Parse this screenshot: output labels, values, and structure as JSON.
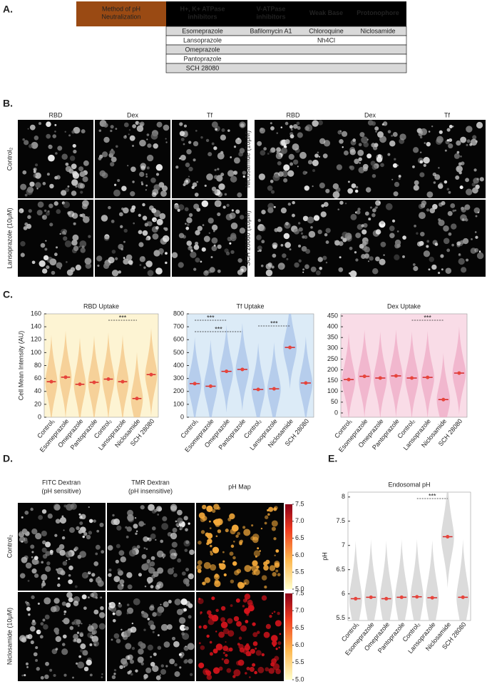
{
  "panel_labels": [
    "A.",
    "B.",
    "C.",
    "D.",
    "E."
  ],
  "table": {
    "method": "Method of pH Neutralization",
    "columns": [
      {
        "name": "H+, K+ ATPase inhibitors",
        "items": [
          "Esomeprazole",
          "Lansoprazole",
          "Omeprazole",
          "Pantoprazole",
          "SCH 28080"
        ]
      },
      {
        "name": "V-ATPase inhibitors",
        "items": [
          "Bafilomycin A1"
        ]
      },
      {
        "name": "Weak Base",
        "items": [
          "Chloroquine",
          "Nh4Cl"
        ]
      },
      {
        "name": "Protonophore",
        "items": [
          "Niclosamide"
        ]
      }
    ]
  },
  "panel_b": {
    "columns": [
      "RBD",
      "Dex",
      "Tf"
    ],
    "left_rows": [
      "Control₂",
      "Lansoprazole (10μM)"
    ],
    "right_rows": [
      "Niclosamide (10μM)",
      "SCH 28080 (10μM)"
    ]
  },
  "panel_d": {
    "columns": [
      [
        "FITC Dextran",
        "(pH sensitive)"
      ],
      [
        "TMR Dextran",
        "(pH insensitive)"
      ],
      [
        "pH Map"
      ]
    ],
    "rows": [
      "Control₂",
      "Niclosamide (10μM)"
    ],
    "colorbar_ticks": [
      {
        "value": 5,
        "label": "5.0"
      },
      5.5,
      {
        "value": 6,
        "label": "6.0"
      },
      6.5,
      {
        "value": 7,
        "label": "7.0"
      },
      7.5
    ]
  },
  "chart_data": [
    {
      "type": "violin",
      "title": "RBD Uptake",
      "ylabel": "Cell Mean Intensity (AU)",
      "color": "#f3c585",
      "background": "#fdf4d3",
      "categories": [
        "Control₁",
        "Esomeprazole",
        "Omeprazole",
        "Pantoprazole",
        "Control₂",
        "Lansoprazole",
        "Niclosamide",
        "SCH 28080"
      ],
      "values": [
        55,
        62,
        51,
        54,
        59,
        55,
        29,
        66
      ],
      "ylim": [
        0,
        160
      ],
      "yticks": [
        0,
        20,
        40,
        60,
        80,
        100,
        120,
        140,
        160
      ],
      "annotations": [
        {
          "text": "***",
          "from": 4,
          "to": 6
        }
      ]
    },
    {
      "type": "violin",
      "title": "Tf Uptake",
      "color": "#a9c3e8",
      "background": "#dcebf7",
      "categories": [
        "Control₁",
        "Esomeprazole",
        "Omeprazole",
        "Pantoprazole",
        "Control₂",
        "Lansoprazole",
        "Niclosamide",
        "SCH 28080"
      ],
      "values": [
        260,
        240,
        355,
        370,
        215,
        220,
        540,
        265
      ],
      "ylim": [
        0,
        800
      ],
      "yticks": [
        0,
        100,
        200,
        300,
        400,
        500,
        600,
        700,
        800
      ],
      "annotations": [
        {
          "text": "***",
          "from": 0,
          "to": 2
        },
        {
          "text": "***",
          "from": 4,
          "to": 6
        },
        {
          "text": "***",
          "from": 0,
          "to": 3
        }
      ]
    },
    {
      "type": "violin",
      "title": "Dex Uptake",
      "color": "#eeabc5",
      "background": "#f9dce7",
      "categories": [
        "Control₁",
        "Esomeprazole",
        "Omeprazole",
        "Pantoprazole",
        "Control₂",
        "Lansoprazole",
        "Niclosamide",
        "SCH 28080"
      ],
      "values": [
        155,
        170,
        162,
        172,
        162,
        165,
        62,
        185
      ],
      "ylim": [
        -20,
        460
      ],
      "yticks": [
        0,
        50,
        100,
        150,
        200,
        250,
        300,
        350,
        400,
        450
      ],
      "annotations": [
        {
          "text": "***",
          "from": 4,
          "to": 6
        }
      ]
    },
    {
      "type": "violin",
      "title": "Endosomal pH",
      "ylabel": "pH",
      "color": "#cfcfcf",
      "background": "#ffffff",
      "categories": [
        "Control₁",
        "Esomeprazole",
        "Omeprazole",
        "Pantoprazole",
        "Control₂",
        "Lansoprazole",
        "Niclosamide",
        "SCH 28080"
      ],
      "values": [
        5.9,
        5.93,
        5.9,
        5.93,
        5.94,
        5.92,
        7.18,
        5.93
      ],
      "ylim": [
        5.45,
        8.1
      ],
      "yticks": [
        5.5,
        6,
        6.5,
        7,
        7.5,
        8
      ],
      "annotations": [
        {
          "text": "***",
          "from": 4,
          "to": 6
        }
      ]
    }
  ]
}
